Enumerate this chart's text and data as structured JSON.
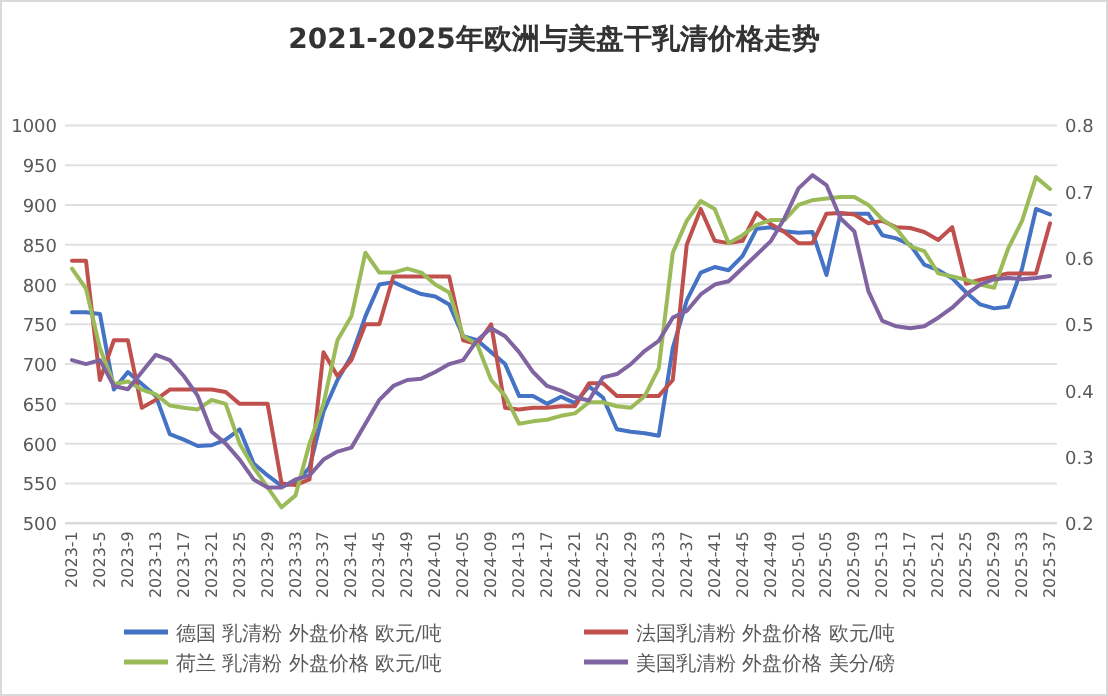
{
  "chart_data": {
    "type": "line",
    "title": "2021-2025年欧洲与美盘干乳清价格走势",
    "categories": [
      "2023-1",
      null,
      "2023-5",
      null,
      "2023-9",
      null,
      "2023-13",
      null,
      "2023-17",
      null,
      "2023-21",
      null,
      "2023-25",
      null,
      "2023-29",
      null,
      "2023-33",
      null,
      "2023-37",
      null,
      "2023-41",
      null,
      "2023-45",
      null,
      "2023-49",
      null,
      "2024-01",
      null,
      "2024-05",
      null,
      "2024-09",
      null,
      "2024-13",
      null,
      "2024-17",
      null,
      "2024-21",
      null,
      "2024-25",
      null,
      "2024-29",
      null,
      "2024-33",
      null,
      "2024-37",
      null,
      "2024-41",
      null,
      "2024-45",
      null,
      "2024-49",
      null,
      "2025-01",
      null,
      "2025-05",
      null,
      "2025-09",
      null,
      "2025-13",
      null,
      "2025-17",
      null,
      "2025-21",
      null,
      "2025-25",
      null,
      "2025-29",
      null,
      "2025-33",
      null,
      "2025-37"
    ],
    "series": [
      {
        "name": "德国 乳清粉 外盘价格 欧元/吨",
        "color": "#4472c4",
        "values": [
          765,
          765,
          763,
          668,
          690,
          675,
          660,
          612,
          605,
          597,
          598,
          605,
          618,
          575,
          560,
          547,
          550,
          570,
          640,
          680,
          710,
          760,
          800,
          803,
          795,
          788,
          785,
          775,
          735,
          730,
          715,
          700,
          660,
          660,
          650,
          659,
          651,
          672,
          658,
          618,
          615,
          613,
          610,
          720,
          780,
          815,
          822,
          818,
          836,
          870,
          872,
          867,
          865,
          866,
          812,
          889,
          889,
          889,
          862,
          858,
          850,
          825,
          818,
          808,
          790,
          775,
          770,
          772,
          820,
          895,
          888
        ]
      },
      {
        "name": "法国乳清粉 外盘价格 欧元/吨",
        "color": "#c0504d",
        "values": [
          830,
          830,
          680,
          730,
          730,
          645,
          655,
          668,
          668,
          668,
          668,
          665,
          650,
          650,
          650,
          550,
          548,
          555,
          715,
          685,
          705,
          750,
          750,
          810,
          810,
          810,
          810,
          810,
          730,
          725,
          750,
          645,
          643,
          645,
          645,
          647,
          647,
          676,
          676,
          660,
          660,
          660,
          660,
          680,
          850,
          895,
          855,
          852,
          855,
          890,
          876,
          866,
          852,
          852,
          889,
          890,
          888,
          877,
          880,
          872,
          871,
          866,
          856,
          872,
          801,
          806,
          810,
          814,
          814,
          814,
          877
        ]
      },
      {
        "name": "荷兰 乳清粉 外盘价格 欧元/吨",
        "color": "#9bbb59",
        "values": [
          820,
          795,
          720,
          675,
          678,
          668,
          662,
          648,
          645,
          643,
          655,
          650,
          600,
          570,
          545,
          520,
          535,
          600,
          650,
          730,
          760,
          840,
          815,
          815,
          820,
          815,
          800,
          790,
          735,
          725,
          680,
          660,
          625,
          628,
          630,
          635,
          638,
          652,
          652,
          647,
          645,
          660,
          695,
          840,
          880,
          905,
          895,
          852,
          862,
          875,
          881,
          881,
          900,
          906,
          908,
          910,
          910,
          900,
          882,
          870,
          848,
          842,
          814,
          810,
          806,
          800,
          796,
          845,
          880,
          935,
          920
        ]
      },
      {
        "name": "美国乳清粉 外盘价格 美分/磅",
        "color": "#8064a2",
        "axis": "y2",
        "values": [
          0.446,
          0.44,
          0.446,
          0.407,
          0.402,
          0.428,
          0.454,
          0.446,
          0.422,
          0.392,
          0.338,
          0.32,
          0.296,
          0.266,
          0.254,
          0.254,
          0.266,
          0.272,
          0.296,
          0.308,
          0.314,
          0.35,
          0.386,
          0.407,
          0.416,
          0.418,
          0.428,
          0.44,
          0.446,
          0.476,
          0.494,
          0.482,
          0.458,
          0.428,
          0.407,
          0.4,
          0.39,
          0.385,
          0.42,
          0.425,
          0.44,
          0.46,
          0.475,
          0.51,
          0.52,
          0.545,
          0.56,
          0.565,
          0.585,
          0.605,
          0.625,
          0.66,
          0.705,
          0.725,
          0.71,
          0.66,
          0.64,
          0.55,
          0.505,
          0.497,
          0.494,
          0.497,
          0.51,
          0.525,
          0.545,
          0.56,
          0.568,
          0.57,
          0.568,
          0.57,
          0.573
        ]
      }
    ],
    "ylim": [
      500,
      1000
    ],
    "yticks": [
      500,
      550,
      600,
      650,
      700,
      750,
      800,
      850,
      900,
      950,
      1000
    ],
    "y2lim": [
      0.2,
      0.8
    ],
    "y2ticks": [
      0.2,
      0.3,
      0.4,
      0.5,
      0.6,
      0.7,
      0.8
    ],
    "grid": "y",
    "legend": "bottom"
  }
}
